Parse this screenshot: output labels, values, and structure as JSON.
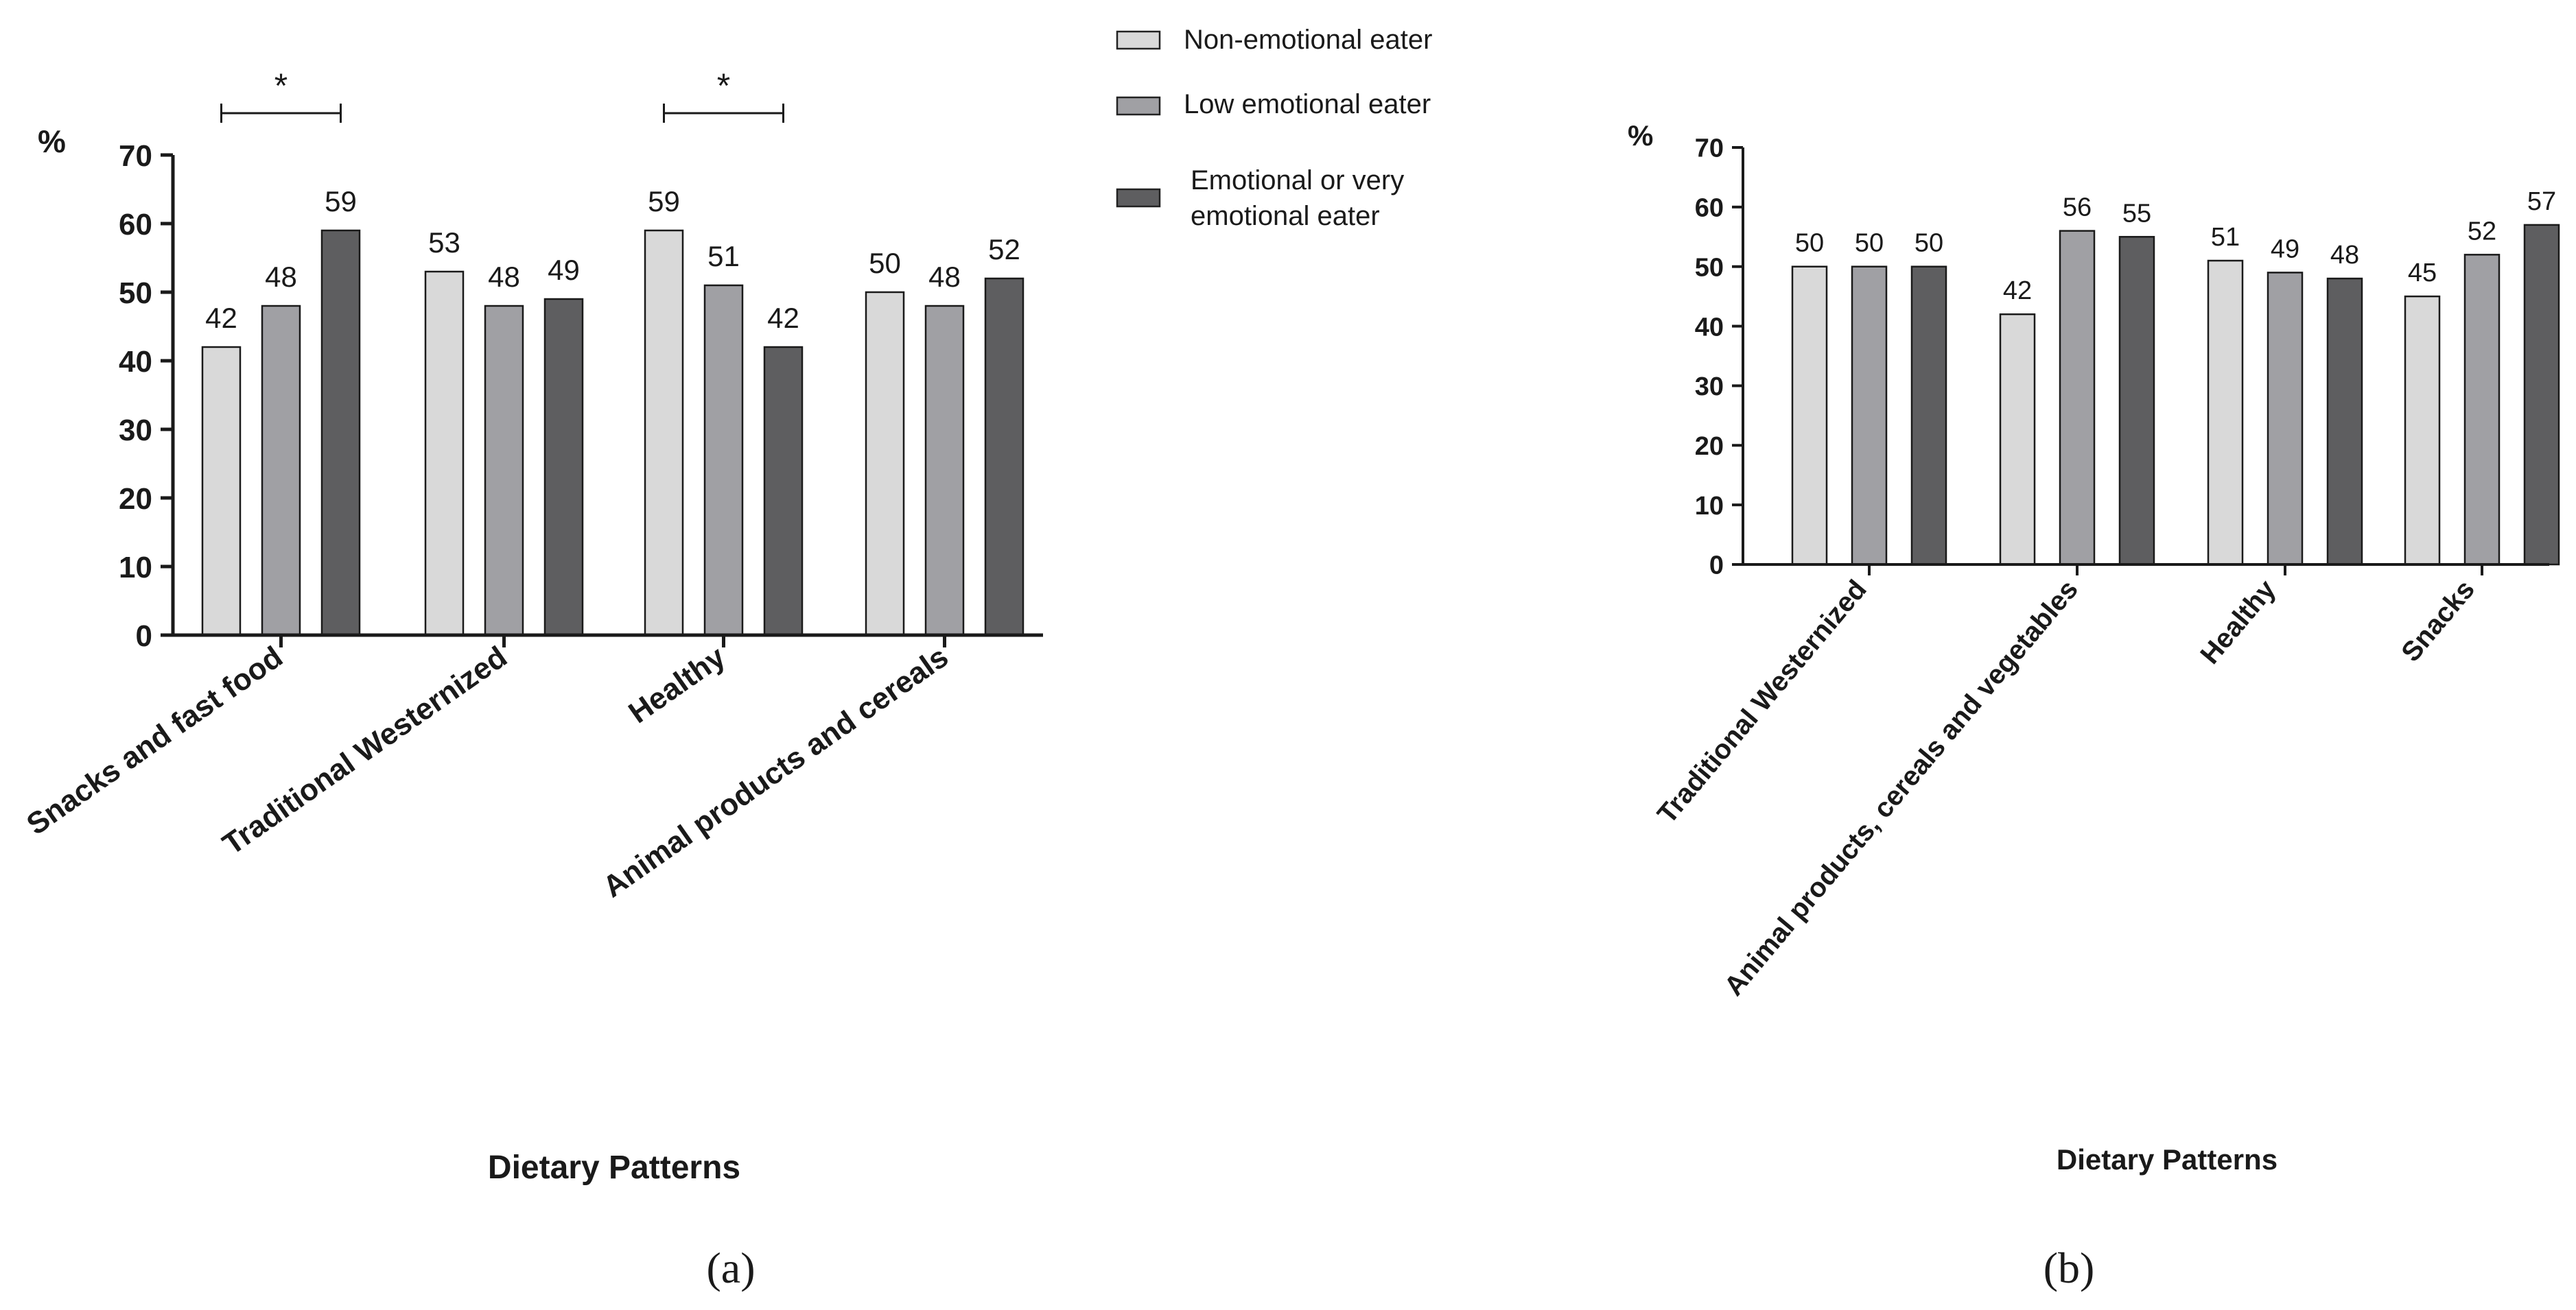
{
  "legend": {
    "items": [
      {
        "label": "Non-emotional eater",
        "color": "#d9d9d9"
      },
      {
        "label": "Low emotional eater",
        "color": "#a0a0a4"
      },
      {
        "label_line1": "Emotional or very",
        "label_line2": "emotional eater",
        "color": "#5e5e60"
      }
    ]
  },
  "panel_labels": {
    "a": "(a)",
    "b": "(b)"
  },
  "significance_mark": "*",
  "chart_data": [
    {
      "type": "bar",
      "panel": "a",
      "title": "",
      "xlabel": "Dietary Patterns",
      "ylabel": "%",
      "ylim": [
        0,
        70
      ],
      "yticks": [
        0,
        10,
        20,
        30,
        40,
        50,
        60,
        70
      ],
      "categories": [
        "Snacks and fast food",
        "Traditional Westernized",
        "Healthy",
        "Animal products and cereals"
      ],
      "series": [
        {
          "name": "Non-emotional eater",
          "values": [
            42,
            53,
            59,
            50
          ]
        },
        {
          "name": "Low emotional eater",
          "values": [
            48,
            48,
            51,
            48
          ]
        },
        {
          "name": "Emotional or very emotional eater",
          "values": [
            59,
            49,
            42,
            52
          ]
        }
      ],
      "data_labels": [
        [
          "42",
          "53",
          "59",
          "50"
        ],
        [
          "48",
          "48",
          "51",
          "48"
        ],
        [
          "59",
          "49",
          "42",
          "52"
        ]
      ],
      "significance": [
        {
          "category": "Snacks and fast food",
          "label": "*"
        },
        {
          "category": "Healthy",
          "label": "*"
        }
      ]
    },
    {
      "type": "bar",
      "panel": "b",
      "title": "",
      "xlabel": "Dietary Patterns",
      "ylabel": "%",
      "ylim": [
        0,
        70
      ],
      "yticks": [
        0,
        10,
        20,
        30,
        40,
        50,
        60,
        70
      ],
      "categories": [
        "Traditional Westernized",
        "Animal products, cereals and vegetables",
        "Healthy",
        "Snacks"
      ],
      "series": [
        {
          "name": "Non-emotional eater",
          "values": [
            50,
            42,
            51,
            45
          ]
        },
        {
          "name": "Low emotional eater",
          "values": [
            50,
            56,
            49,
            52
          ]
        },
        {
          "name": "Emotional or very emotional eater",
          "values": [
            50,
            55,
            48,
            57
          ]
        }
      ],
      "data_labels": [
        [
          "50",
          "42",
          "51",
          "45"
        ],
        [
          "50",
          "56",
          "49",
          "52"
        ],
        [
          "50",
          "55",
          "48",
          "57"
        ]
      ]
    }
  ]
}
